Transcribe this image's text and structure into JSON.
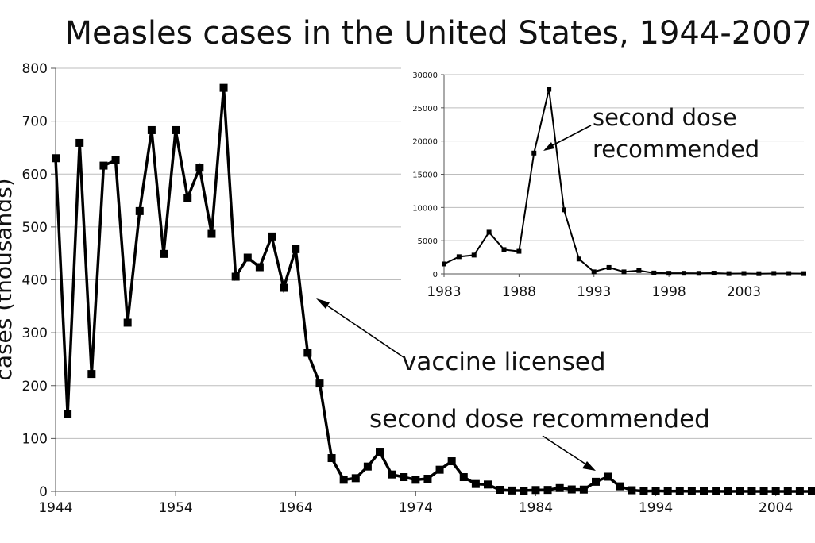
{
  "title": "Measles cases in the United States, 1944-2007",
  "chart_data": [
    {
      "type": "line",
      "ylabel": "cases (thousands)",
      "xlabel": "",
      "xlim": [
        1944,
        2007
      ],
      "ylim": [
        0,
        800
      ],
      "x_ticks": [
        1944,
        1954,
        1964,
        1974,
        1984,
        1994,
        2004
      ],
      "y_ticks": [
        0,
        100,
        200,
        300,
        400,
        500,
        600,
        700,
        800
      ],
      "grid": "horizontal",
      "marker": "square",
      "color": "#000000",
      "x": [
        1944,
        1945,
        1946,
        1947,
        1948,
        1949,
        1950,
        1951,
        1952,
        1953,
        1954,
        1955,
        1956,
        1957,
        1958,
        1959,
        1960,
        1961,
        1962,
        1963,
        1964,
        1965,
        1966,
        1967,
        1968,
        1969,
        1970,
        1971,
        1972,
        1973,
        1974,
        1975,
        1976,
        1977,
        1978,
        1979,
        1980,
        1981,
        1982,
        1983,
        1984,
        1985,
        1986,
        1987,
        1988,
        1989,
        1990,
        1991,
        1992,
        1993,
        1994,
        1995,
        1996,
        1997,
        1998,
        1999,
        2000,
        2001,
        2002,
        2003,
        2004,
        2005,
        2006,
        2007
      ],
      "values": [
        630,
        146,
        659,
        222,
        616,
        626,
        319,
        530,
        683,
        449,
        683,
        555,
        612,
        487,
        763,
        406,
        442,
        424,
        482,
        385,
        458,
        262,
        204,
        63,
        22,
        25,
        47,
        75,
        32,
        27,
        22,
        24,
        41,
        57,
        27,
        14,
        13,
        3,
        1.7,
        1.5,
        2.6,
        2.8,
        6.3,
        3.7,
        3.4,
        18.2,
        27.8,
        9.6,
        2.2,
        0.3,
        1.0,
        0.3,
        0.5,
        0.14,
        0.1,
        0.1,
        0.09,
        0.12,
        0.04,
        0.06,
        0.04,
        0.07,
        0.06,
        0.04
      ],
      "annotations": [
        {
          "text": "vaccine licensed",
          "x": 1963.5,
          "y": 370
        },
        {
          "text": "second dose recommended",
          "x": 1989,
          "y": 18
        }
      ]
    },
    {
      "type": "line",
      "role": "inset",
      "xlim": [
        1983,
        2007
      ],
      "ylim": [
        0,
        30000
      ],
      "x_ticks": [
        1983,
        1988,
        1993,
        1998,
        2003
      ],
      "y_ticks": [
        0,
        5000,
        10000,
        15000,
        20000,
        25000,
        30000
      ],
      "grid": "horizontal",
      "marker": "square",
      "color": "#000000",
      "x": [
        1983,
        1984,
        1985,
        1986,
        1987,
        1988,
        1989,
        1990,
        1991,
        1992,
        1993,
        1994,
        1995,
        1996,
        1997,
        1998,
        1999,
        2000,
        2001,
        2002,
        2003,
        2004,
        2005,
        2006,
        2007
      ],
      "values": [
        1497,
        2587,
        2822,
        6282,
        3655,
        3396,
        18193,
        27786,
        9643,
        2237,
        312,
        963,
        309,
        508,
        138,
        100,
        100,
        86,
        116,
        44,
        56,
        37,
        66,
        55,
        43
      ],
      "annotations": [
        {
          "text_lines": [
            "second dose",
            "recommended"
          ],
          "x": 1989,
          "y": 18193
        }
      ]
    }
  ]
}
